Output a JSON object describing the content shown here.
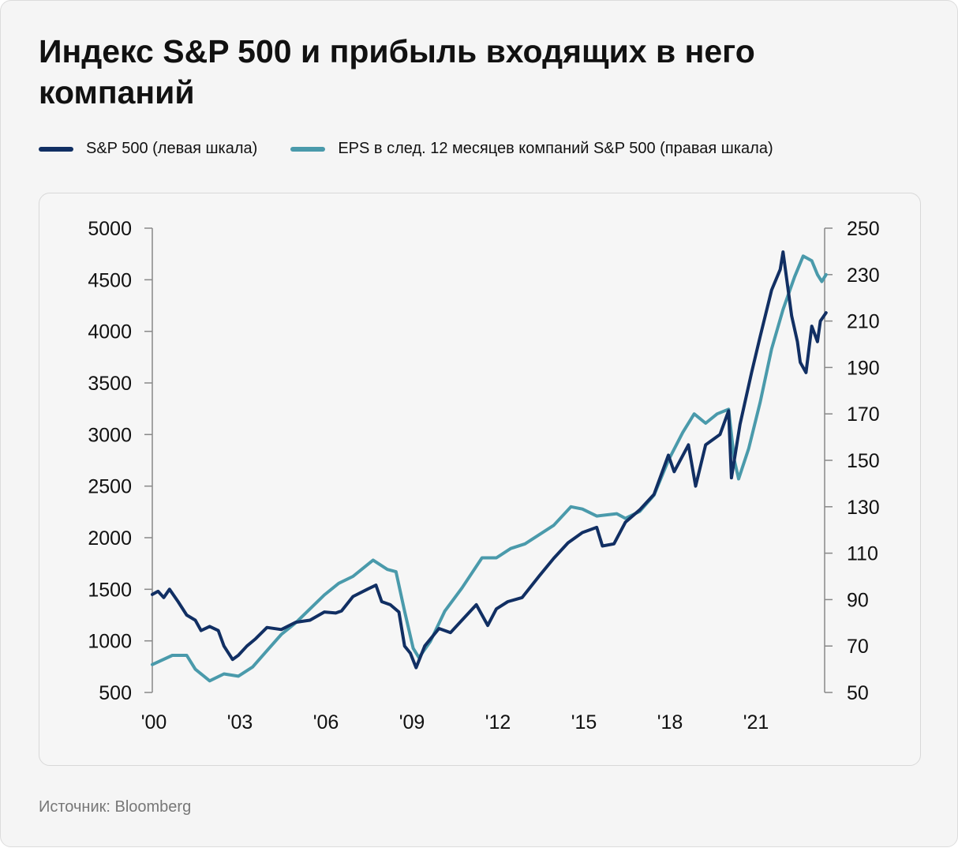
{
  "title": "Индекс S&P 500 и прибыль входящих в него компаний",
  "source": "Источник: Bloomberg",
  "chart_data": {
    "type": "line",
    "title": "Индекс S&P 500 и прибыль входящих в него компаний",
    "xlim": [
      2000,
      2024.5
    ],
    "x_ticks": [
      2000,
      2003,
      2006,
      2009,
      2012,
      2015,
      2018,
      2021
    ],
    "x_tick_labels": [
      "'00",
      "'03",
      "'06",
      "'09",
      "'12",
      "'15",
      "'18",
      "'21"
    ],
    "y_left": {
      "lim": [
        500,
        5000
      ],
      "ticks": [
        500,
        1000,
        1500,
        2000,
        2500,
        3000,
        3500,
        4000,
        4500,
        5000
      ]
    },
    "y_right": {
      "lim": [
        50,
        250
      ],
      "ticks": [
        50,
        70,
        90,
        110,
        130,
        150,
        170,
        190,
        210,
        230,
        250
      ]
    },
    "grid": false,
    "legend_placement": "top",
    "series": [
      {
        "name": "S&P 500 (левая шкала)",
        "axis": "left",
        "color": "#112f63",
        "x": [
          2000,
          2000.2,
          2000.4,
          2000.6,
          2000.9,
          2001.2,
          2001.5,
          2001.7,
          2002,
          2002.3,
          2002.5,
          2002.8,
          2003,
          2003.3,
          2003.6,
          2004,
          2004.5,
          2005,
          2005.5,
          2006,
          2006.4,
          2006.6,
          2007,
          2007.5,
          2007.8,
          2008,
          2008.3,
          2008.6,
          2008.8,
          2009.0,
          2009.2,
          2009.5,
          2010,
          2010.4,
          2010.8,
          2011.3,
          2011.7,
          2012,
          2012.4,
          2012.9,
          2013.5,
          2014,
          2014.5,
          2015,
          2015.5,
          2015.7,
          2016.1,
          2016.5,
          2017,
          2017.5,
          2018,
          2018.2,
          2018.7,
          2018.95,
          2019.3,
          2019.8,
          2020.1,
          2020.2,
          2020.5,
          2020.9,
          2021.2,
          2021.6,
          2021.9,
          2022.0,
          2022.3,
          2022.5,
          2022.6,
          2022.8,
          2023.0,
          2023.2,
          2023.3,
          2023.5
        ],
        "y": [
          1450,
          1480,
          1420,
          1500,
          1380,
          1250,
          1200,
          1100,
          1140,
          1100,
          950,
          820,
          860,
          950,
          1020,
          1130,
          1110,
          1180,
          1200,
          1280,
          1270,
          1290,
          1430,
          1500,
          1540,
          1380,
          1350,
          1280,
          950,
          880,
          740,
          950,
          1120,
          1080,
          1200,
          1350,
          1150,
          1310,
          1380,
          1420,
          1630,
          1800,
          1950,
          2050,
          2100,
          1920,
          1940,
          2150,
          2270,
          2420,
          2800,
          2640,
          2900,
          2500,
          2900,
          3000,
          3230,
          2580,
          3100,
          3600,
          3950,
          4400,
          4600,
          4770,
          4150,
          3900,
          3700,
          3600,
          4050,
          3900,
          4100,
          4180
        ]
      },
      {
        "name": "EPS в след. 12 месяцев компаний S&P 500 (правая шкала)",
        "axis": "right",
        "color": "#4a9aab",
        "x": [
          2000,
          2000.7,
          2001.2,
          2001.5,
          2002,
          2002.5,
          2003,
          2003.5,
          2004,
          2004.5,
          2005,
          2005.5,
          2006,
          2006.5,
          2007,
          2007.5,
          2007.7,
          2008.2,
          2008.5,
          2008.8,
          2009.1,
          2009.3,
          2009.7,
          2010.2,
          2010.8,
          2011.5,
          2012,
          2012.5,
          2013,
          2013.5,
          2014,
          2014.6,
          2015,
          2015.5,
          2016.2,
          2016.5,
          2017,
          2017.5,
          2018,
          2018.5,
          2018.9,
          2019.3,
          2019.7,
          2020.1,
          2020.3,
          2020.45,
          2020.8,
          2021.2,
          2021.6,
          2022,
          2022.4,
          2022.7,
          2023,
          2023.2,
          2023.35,
          2023.5
        ],
        "y": [
          62,
          66,
          66,
          60,
          55,
          58,
          57,
          61,
          68,
          75,
          80,
          86,
          92,
          97,
          100,
          105,
          107,
          103,
          102,
          85,
          69,
          65,
          72,
          85,
          95,
          108,
          108,
          112,
          114,
          118,
          122,
          130,
          129,
          126,
          127,
          125,
          128,
          135,
          150,
          162,
          170,
          166,
          170,
          172,
          150,
          142,
          155,
          175,
          198,
          215,
          229,
          238,
          236,
          230,
          227,
          230
        ]
      }
    ]
  }
}
